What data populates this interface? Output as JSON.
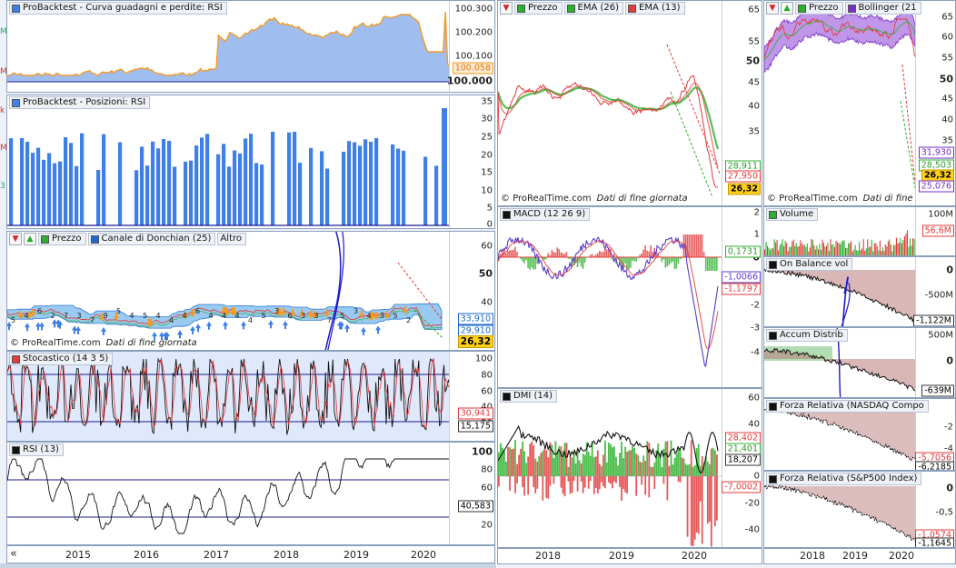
{
  "colors": {
    "blue": "#3f7fe8",
    "orange": "#f59a23",
    "green": "#2db02d",
    "red": "#e43b3b",
    "purple": "#7a2dc8",
    "frame": "#8aa0bd",
    "panelbg": "#dfe9fb",
    "navy": "#1b1b8c"
  },
  "left": {
    "equity": {
      "title": "ProBacktest - Curva guadagni e perdite: RSI",
      "ticks": [
        "100.300",
        "100.200",
        "100.100",
        "100.000"
      ],
      "last": "100.058"
    },
    "positions": {
      "title": "ProBacktest - Posizioni: RSI",
      "ticks": [
        "35",
        "30",
        "25",
        "20",
        "15",
        "10",
        "5",
        "0"
      ]
    },
    "price": {
      "tags": [
        "Prezzo",
        "Canale di Donchian (25)",
        "Altro"
      ],
      "ticks": [
        "60",
        "50",
        "40",
        "30"
      ],
      "labels": [
        "33,910",
        "29,910",
        "26,32"
      ],
      "watermark": "© ProRealTime.com",
      "subtitle": "Dati di fine giornata",
      "arrow_counts": [
        "5",
        "4",
        "6",
        "2",
        "7",
        "3",
        "7",
        "9",
        "5",
        "4",
        "5",
        "4",
        "4",
        "4",
        "6",
        "4",
        "4",
        "4",
        "4",
        "5",
        "3",
        "6",
        "3",
        "3",
        "7",
        "5",
        "3",
        "4",
        "3",
        "5",
        "2"
      ]
    },
    "stoch": {
      "title": "Stocastico (14 3 5)",
      "ticks": [
        "100",
        "80",
        "60",
        "40",
        "20"
      ],
      "labels": [
        "30,941",
        "15,175"
      ]
    },
    "rsi": {
      "title": "RSI (13)",
      "ticks": [
        "100",
        "80",
        "60",
        "40",
        "20"
      ],
      "labels": [
        "40,583"
      ]
    },
    "years": [
      "2015",
      "2016",
      "2017",
      "2018",
      "2019",
      "2020"
    ],
    "scroll_icon": "«"
  },
  "mid": {
    "price": {
      "tags": [
        "Prezzo",
        "EMA (26)",
        "EMA (13)"
      ],
      "ticks": [
        "65",
        "55",
        "50",
        "45",
        "40",
        "35",
        "30",
        "25"
      ],
      "labels": [
        "28,911",
        "27,950",
        "26,32"
      ],
      "watermark": "© ProRealTime.com",
      "subtitle": "Dati di fine giornata"
    },
    "macd": {
      "title": "MACD (12 26 9)",
      "ticks": [
        "2",
        "1",
        "0",
        "-1",
        "-2",
        "-3",
        "-4"
      ],
      "labels": [
        "0,1731",
        "-1,0066",
        "-1,1797"
      ]
    },
    "dmi": {
      "title": "DMI (14)",
      "ticks": [
        "60",
        "40",
        "20",
        "0",
        "-20",
        "-40"
      ],
      "labels": [
        "28,402",
        "21,401",
        "18,207",
        "-7,0002"
      ]
    },
    "years": [
      "2018",
      "2019",
      "2020"
    ]
  },
  "right": {
    "price": {
      "tags": [
        "Prezzo",
        "Bollinger (21"
      ],
      "ticks": [
        "65",
        "60",
        "55",
        "50",
        "45",
        "40",
        "35",
        "30",
        "25",
        "20"
      ],
      "labels": [
        "31,930",
        "28,503",
        "26,32",
        "25,076"
      ],
      "watermark": "© ProRealTime.com",
      "subtitle": "Dati di fine giornata"
    },
    "volume": {
      "title": "Volume",
      "ticks": [
        "100M",
        "50M"
      ],
      "labels": [
        "56,6M"
      ]
    },
    "obv": {
      "title": "On Balance vol",
      "ticks": [
        "0",
        "-500M"
      ],
      "labels": [
        "-1,122M"
      ]
    },
    "accum": {
      "title": "Accum Distrib",
      "ticks": [
        "500M",
        "0"
      ],
      "labels": [
        "-639M"
      ]
    },
    "rs1": {
      "title": "Forza Relativa (NASDAQ Compo",
      "ticks": [
        "-2",
        "-4"
      ],
      "labels": [
        "-5,7056",
        "-6,2185"
      ]
    },
    "rs2": {
      "title": "Forza Relativa (S&P500 Index)",
      "ticks": [
        "0",
        "-0,5",
        "-1"
      ],
      "labels": [
        "-1,0574",
        "-1,1645"
      ]
    },
    "years": [
      "2018",
      "2019",
      "2020"
    ]
  },
  "edge_letters": [
    "M",
    "M",
    "k",
    "M",
    "3"
  ],
  "icons": {
    "equity": "chart-icon",
    "up": "arrow-up-icon",
    "down": "arrow-down-icon"
  }
}
